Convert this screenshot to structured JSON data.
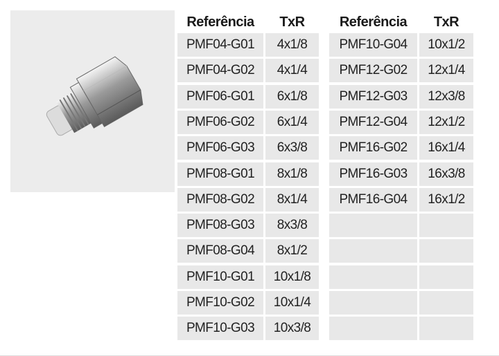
{
  "table": {
    "left": {
      "header": [
        "Referência",
        "TxR"
      ],
      "rows": [
        [
          "PMF04-G01",
          "4x1/8"
        ],
        [
          "PMF04-G02",
          "4x1/4"
        ],
        [
          "PMF06-G01",
          "6x1/8"
        ],
        [
          "PMF06-G02",
          "6x1/4"
        ],
        [
          "PMF06-G03",
          "6x3/8"
        ],
        [
          "PMF08-G01",
          "8x1/8"
        ],
        [
          "PMF08-G02",
          "8x1/4"
        ],
        [
          "PMF08-G03",
          "8x3/8"
        ],
        [
          "PMF08-G04",
          "8x1/2"
        ],
        [
          "PMF10-G01",
          "10x1/8"
        ],
        [
          "PMF10-G02",
          "10x1/4"
        ],
        [
          "PMF10-G03",
          "10x3/8"
        ]
      ]
    },
    "right": {
      "header": [
        "Referência",
        "TxR"
      ],
      "rows": [
        [
          "PMF10-G04",
          "10x1/2"
        ],
        [
          "PMF12-G02",
          "12x1/4"
        ],
        [
          "PMF12-G03",
          "12x3/8"
        ],
        [
          "PMF12-G04",
          "12x1/2"
        ],
        [
          "PMF16-G02",
          "16x1/4"
        ],
        [
          "PMF16-G03",
          "16x3/8"
        ],
        [
          "PMF16-G04",
          "16x1/2"
        ]
      ]
    }
  }
}
